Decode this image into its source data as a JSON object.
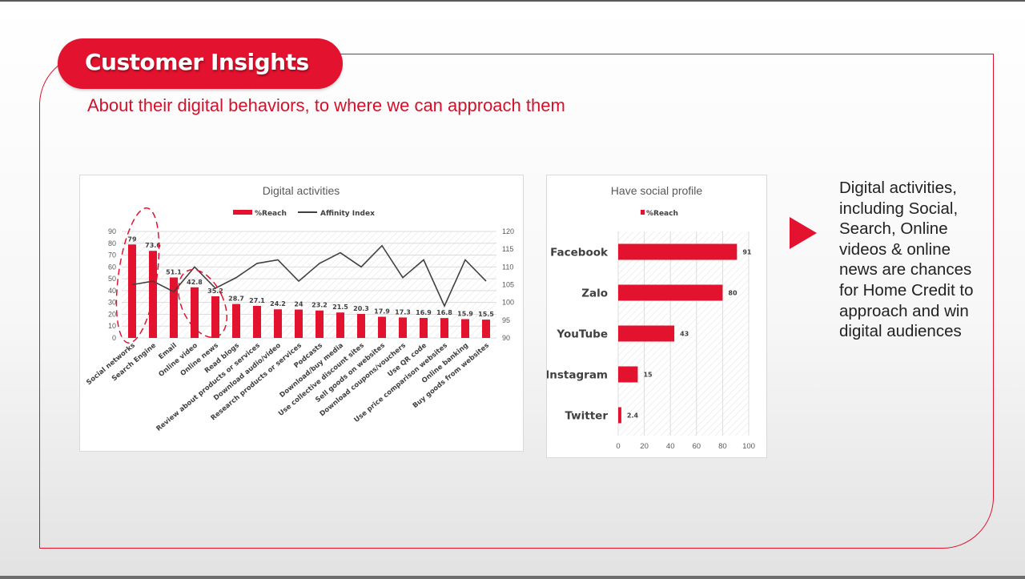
{
  "header": {
    "title": "Customer Insights",
    "subtitle": "About their digital behaviors, to where we can approach them"
  },
  "side_note": "Digital activities, including Social, Search, Online videos & online news are chances for Home Credit to approach and win digital audiences",
  "colors": {
    "accent": "#e3122e",
    "line": "#404040",
    "frame": "#e0102c"
  },
  "chart_data": [
    {
      "type": "bar",
      "title": "Digital activities",
      "categories": [
        "Social networks",
        "Search Engine",
        "Email",
        "Online video",
        "Online news",
        "Read blogs",
        "Review about products or services",
        "Download audio/video",
        "Research products or services",
        "Podcasts",
        "Download/buy media",
        "Use collective discount sites",
        "Sell goods on websites",
        "Download coupons/vouchers",
        "Use QR code",
        "Use price comparison websites",
        "Online banking",
        "Buy goods from websites"
      ],
      "series": [
        {
          "name": "%Reach",
          "kind": "bar",
          "axis": "left",
          "color": "#e3122e",
          "values": [
            79,
            73.6,
            51.1,
            42.8,
            35.2,
            28.7,
            27.1,
            24.2,
            24,
            23.2,
            21.5,
            20.3,
            17.9,
            17.3,
            16.9,
            16.8,
            15.9,
            15.5
          ]
        },
        {
          "name": "Affinity Index",
          "kind": "line",
          "axis": "right",
          "color": "#404040",
          "values": [
            105,
            106,
            103,
            110,
            104,
            107,
            111,
            112,
            106,
            111,
            114,
            110,
            116,
            107,
            112,
            99,
            112,
            106
          ]
        }
      ],
      "ylim": [
        0,
        90
      ],
      "yticks": [
        0,
        10,
        20,
        30,
        40,
        50,
        60,
        70,
        80,
        90
      ],
      "y2lim": [
        90,
        120
      ],
      "y2ticks": [
        90,
        95,
        100,
        105,
        110,
        115,
        120
      ],
      "legend": "top",
      "grid": true,
      "annotations": [
        "dashed circles highlighting Social networks, Search Engine, Online video, Online news"
      ]
    },
    {
      "type": "bar",
      "orientation": "horizontal",
      "title": "Have social profile",
      "categories": [
        "Facebook",
        "Zalo",
        "YouTube",
        "Instagram",
        "Twitter"
      ],
      "series": [
        {
          "name": "%Reach",
          "color": "#e3122e",
          "values": [
            91,
            80,
            43,
            15,
            2.4
          ]
        }
      ],
      "xlim": [
        0,
        100
      ],
      "xticks": [
        0,
        20,
        40,
        60,
        80,
        100
      ],
      "legend": "top",
      "grid": true
    }
  ]
}
